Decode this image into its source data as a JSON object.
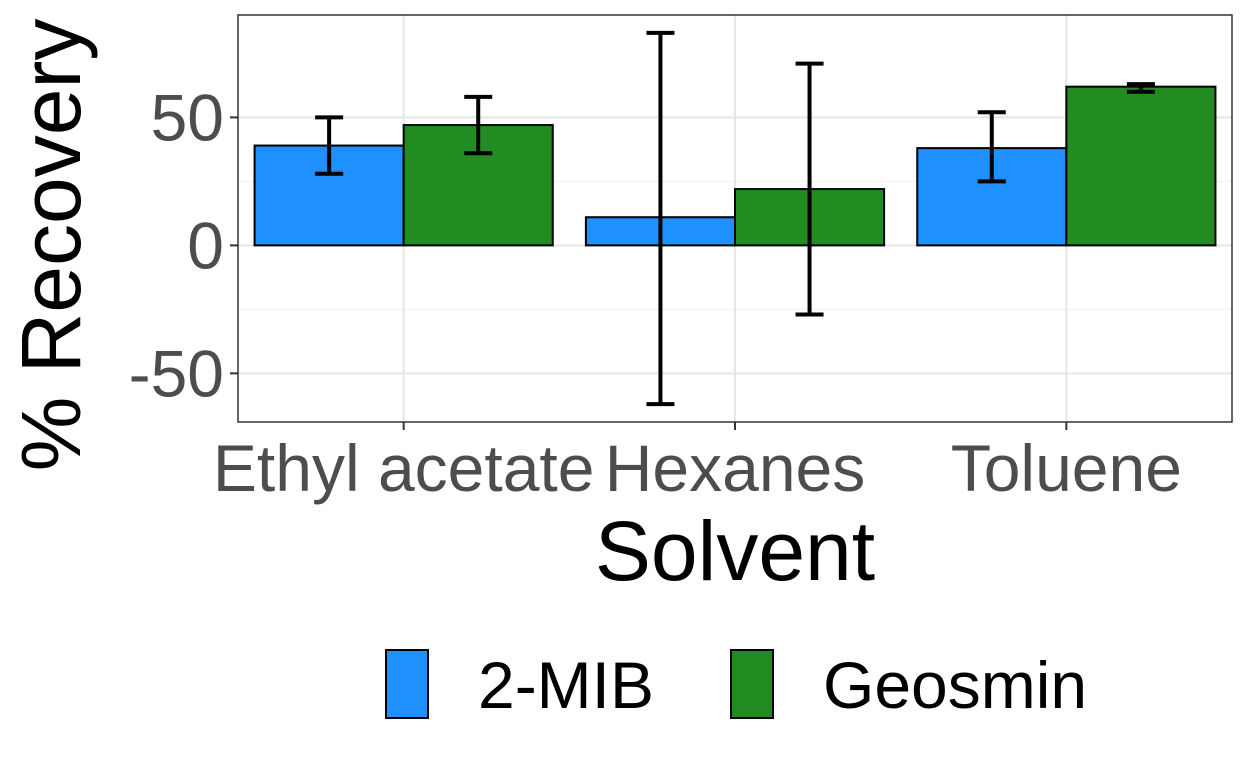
{
  "chart_data": {
    "type": "bar",
    "xlabel": "Solvent",
    "ylabel": "% Recovery",
    "categories": [
      "Ethyl acetate",
      "Hexanes",
      "Toluene"
    ],
    "ylim": [
      -69,
      90
    ],
    "yticks": [
      -50,
      0,
      50
    ],
    "grid": true,
    "legend_position": "bottom",
    "series": [
      {
        "name": "2-MIB",
        "color": "#1e90ff",
        "values": [
          39,
          11,
          38
        ],
        "error_low": [
          28,
          -62,
          25
        ],
        "error_high": [
          50,
          83,
          52
        ]
      },
      {
        "name": "Geosmin",
        "color": "#228b22",
        "values": [
          47,
          22,
          62
        ],
        "error_low": [
          36,
          -27,
          60
        ],
        "error_high": [
          58,
          71,
          63
        ]
      }
    ]
  }
}
